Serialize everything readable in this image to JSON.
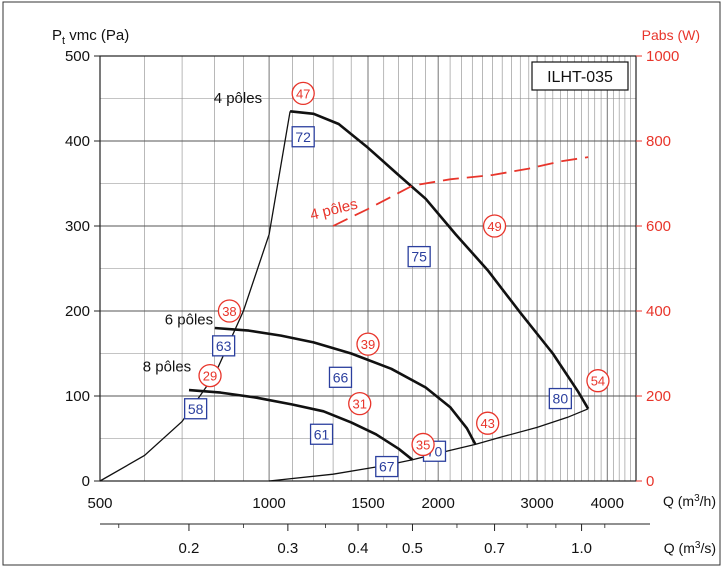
{
  "chart_data": {
    "type": "line",
    "model_box": "ILHT-035",
    "left_axis": {
      "label_main": "P",
      "label_sub": "t",
      "label_rest": " vmc (Pa)",
      "ticks": [
        0,
        100,
        200,
        300,
        400,
        500
      ],
      "range": [
        0,
        500
      ]
    },
    "right_axis": {
      "label": "Pabs (W)",
      "ticks": [
        0,
        200,
        400,
        600,
        800,
        1000
      ],
      "range": [
        0,
        1000
      ],
      "color": "#e8352b"
    },
    "x_axis_m3h": {
      "scale": "log",
      "range": [
        500,
        4500
      ],
      "tick_labels": [
        {
          "value": 500,
          "label": "500"
        },
        {
          "value": 1000,
          "label": "1000"
        },
        {
          "value": 1500,
          "label": "1500"
        },
        {
          "value": 2000,
          "label": "2000"
        },
        {
          "value": 3000,
          "label": "3000"
        },
        {
          "value": 4000,
          "label": "4000"
        }
      ],
      "unit_label": "Q (m³/h)"
    },
    "x_axis_m3s": {
      "tick_labels": [
        {
          "value": 0.2,
          "label": "0.2"
        },
        {
          "value": 0.3,
          "label": "0.3"
        },
        {
          "value": 0.4,
          "label": "0.4"
        },
        {
          "value": 0.5,
          "label": "0.5"
        },
        {
          "value": 0.7,
          "label": "0.7"
        },
        {
          "value": 1.0,
          "label": "1.0"
        }
      ],
      "unit_label": "Q (m³/s)"
    },
    "series": [
      {
        "name": "4 pôles",
        "color": "#111111",
        "points": [
          [
            1090,
            435
          ],
          [
            1200,
            432
          ],
          [
            1330,
            420
          ],
          [
            1500,
            392
          ],
          [
            1700,
            360
          ],
          [
            1900,
            332
          ],
          [
            2150,
            290
          ],
          [
            2450,
            248
          ],
          [
            2800,
            198
          ],
          [
            3200,
            150
          ],
          [
            3550,
            105
          ],
          [
            3700,
            85
          ]
        ]
      },
      {
        "name": "6 pôles",
        "color": "#111111",
        "points": [
          [
            800,
            180
          ],
          [
            920,
            177
          ],
          [
            1050,
            171
          ],
          [
            1200,
            163
          ],
          [
            1400,
            150
          ],
          [
            1650,
            132
          ],
          [
            1900,
            110
          ],
          [
            2100,
            87
          ],
          [
            2250,
            62
          ],
          [
            2330,
            43
          ]
        ]
      },
      {
        "name": "8 pôles",
        "color": "#111111",
        "points": [
          [
            720,
            107
          ],
          [
            820,
            104
          ],
          [
            950,
            98
          ],
          [
            1100,
            90
          ],
          [
            1250,
            82
          ],
          [
            1400,
            69
          ],
          [
            1550,
            55
          ],
          [
            1700,
            38
          ],
          [
            1800,
            25
          ]
        ]
      }
    ],
    "system_curves": [
      {
        "name": "left",
        "points": [
          [
            500,
            0
          ],
          [
            600,
            30
          ],
          [
            700,
            70
          ],
          [
            800,
            125
          ],
          [
            900,
            200
          ],
          [
            1000,
            290
          ],
          [
            1090,
            435
          ]
        ]
      },
      {
        "name": "bottom",
        "points": [
          [
            1000,
            0
          ],
          [
            1300,
            8
          ],
          [
            1600,
            18
          ],
          [
            1800,
            25
          ],
          [
            2100,
            36
          ],
          [
            2330,
            43
          ],
          [
            2600,
            52
          ],
          [
            3000,
            63
          ],
          [
            3400,
            75
          ],
          [
            3700,
            85
          ]
        ]
      }
    ],
    "power_series": {
      "name": "4 pôles",
      "color": "#e8352b",
      "dashed": true,
      "points": [
        [
          1300,
          600
        ],
        [
          1500,
          640
        ],
        [
          1800,
          695
        ],
        [
          2100,
          710
        ],
        [
          2500,
          720
        ],
        [
          2900,
          735
        ],
        [
          3300,
          752
        ],
        [
          3700,
          762
        ]
      ]
    },
    "curve_labels": [
      {
        "text": "4 pôles",
        "x": 880,
        "y": 445,
        "color": "#111111"
      },
      {
        "text": "6 pôles",
        "x": 720,
        "y": 184,
        "color": "#111111"
      },
      {
        "text": "8 pôles",
        "x": 658,
        "y": 129,
        "color": "#111111"
      },
      {
        "text": "4 pôles",
        "x": 1310,
        "y": 314,
        "color": "#e8352b",
        "rotate": -14
      }
    ],
    "efficiency_boxes": [
      {
        "text": "72",
        "x": 1150,
        "y": 405
      },
      {
        "text": "75",
        "x": 1850,
        "y": 264
      },
      {
        "text": "63",
        "x": 830,
        "y": 159
      },
      {
        "text": "66",
        "x": 1340,
        "y": 122
      },
      {
        "text": "58",
        "x": 740,
        "y": 85
      },
      {
        "text": "61",
        "x": 1240,
        "y": 55
      },
      {
        "text": "67",
        "x": 1620,
        "y": 17
      },
      {
        "text": "70",
        "x": 1970,
        "y": 35
      },
      {
        "text": "80",
        "x": 3300,
        "y": 97
      }
    ],
    "noise_circles": [
      {
        "text": "47",
        "x": 1150,
        "y": 456
      },
      {
        "text": "49",
        "x": 2520,
        "y": 300
      },
      {
        "text": "38",
        "x": 850,
        "y": 200
      },
      {
        "text": "39",
        "x": 1500,
        "y": 161
      },
      {
        "text": "29",
        "x": 785,
        "y": 124
      },
      {
        "text": "31",
        "x": 1450,
        "y": 91
      },
      {
        "text": "35",
        "x": 1880,
        "y": 43
      },
      {
        "text": "43",
        "x": 2450,
        "y": 68
      },
      {
        "text": "54",
        "x": 3850,
        "y": 118
      }
    ]
  }
}
